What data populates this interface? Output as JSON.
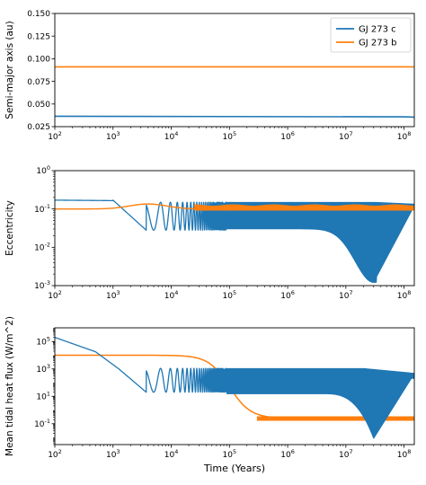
{
  "chart_data": [
    {
      "type": "line",
      "ylabel": "Semi-major axis (au)",
      "xlabel": "",
      "xscale": "log",
      "yscale": "linear",
      "xlim": [
        100,
        150000000
      ],
      "ylim": [
        0.025,
        0.15
      ],
      "xticks": [
        100,
        1000,
        10000,
        100000,
        1000000,
        10000000,
        100000000
      ],
      "xtick_labels": [
        "10^2",
        "10^3",
        "10^4",
        "10^5",
        "10^6",
        "10^7",
        "10^8"
      ],
      "yticks": [
        0.025,
        0.05,
        0.075,
        0.1,
        0.125,
        0.15
      ],
      "ytick_labels": [
        "0.025",
        "0.050",
        "0.075",
        "0.100",
        "0.125",
        "0.150"
      ],
      "legend": "top-right",
      "grid": false,
      "series": [
        {
          "name": "GJ 273 c",
          "color": "#1f77b4",
          "x": [
            100,
            100000000,
            150000000
          ],
          "y": [
            0.0365,
            0.0358,
            0.0355
          ]
        },
        {
          "name": "GJ 273 b",
          "color": "#ff7f0e",
          "x": [
            100,
            150000000
          ],
          "y": [
            0.091,
            0.091
          ]
        }
      ]
    },
    {
      "type": "line",
      "ylabel": "Eccentricity",
      "xlabel": "",
      "xscale": "log",
      "yscale": "log",
      "xlim": [
        100,
        150000000
      ],
      "ylim": [
        0.001,
        1
      ],
      "xticks": [
        100,
        1000,
        10000,
        100000,
        1000000,
        10000000,
        100000000
      ],
      "xtick_labels": [
        "10^2",
        "10^3",
        "10^4",
        "10^5",
        "10^6",
        "10^7",
        "10^8"
      ],
      "yticks": [
        0.001,
        0.01,
        0.1,
        1
      ],
      "ytick_labels": [
        "10^-3",
        "10^-2",
        "10^-1",
        "10^0"
      ],
      "grid": false,
      "series": [
        {
          "name": "GJ 273 c",
          "color": "#1f77b4",
          "ecc_start": 0.17,
          "ecc_dip_min": 0.028,
          "dip_time": 3700,
          "band_upper": 0.15,
          "band_lower": 0.03,
          "deep_min": 0.0012,
          "deep_min_time": 30000000,
          "end_value": 0.12
        },
        {
          "name": "GJ 273 b",
          "color": "#ff7f0e",
          "ecc_start": 0.1,
          "hump_peak": 0.135,
          "hump_time": 4000,
          "band_upper": 0.125,
          "band_lower": 0.092,
          "end_value": 0.1
        }
      ]
    },
    {
      "type": "line",
      "ylabel": "Mean tidal heat flux (W/m^2)",
      "xlabel": "Time (Years)",
      "xscale": "log",
      "yscale": "log",
      "xlim": [
        100,
        150000000
      ],
      "ylim": [
        0.003,
        1000000
      ],
      "xticks": [
        100,
        1000,
        10000,
        100000,
        1000000,
        10000000,
        100000000
      ],
      "xtick_labels": [
        "10^2",
        "10^3",
        "10^4",
        "10^5",
        "10^6",
        "10^7",
        "10^8"
      ],
      "yticks": [
        0.1,
        10,
        1000,
        100000
      ],
      "ytick_labels": [
        "10^-1",
        "10^1",
        "10^3",
        "10^5"
      ],
      "grid": false,
      "series": [
        {
          "name": "GJ 273 c",
          "color": "#1f77b4",
          "start": 200000,
          "plateau": 1000,
          "dip_min": 20,
          "dip_time": 3700,
          "band_upper": 1100,
          "band_lower": 15,
          "deep_min": 0.008,
          "deep_min_time": 30000000,
          "end_value": 200
        },
        {
          "name": "GJ 273 b",
          "color": "#ff7f0e",
          "plateau": 10000,
          "drop_time": 30000,
          "low": 0.25,
          "low_time": 400000,
          "band_upper": 0.33,
          "band_lower": 0.17
        }
      ]
    }
  ]
}
